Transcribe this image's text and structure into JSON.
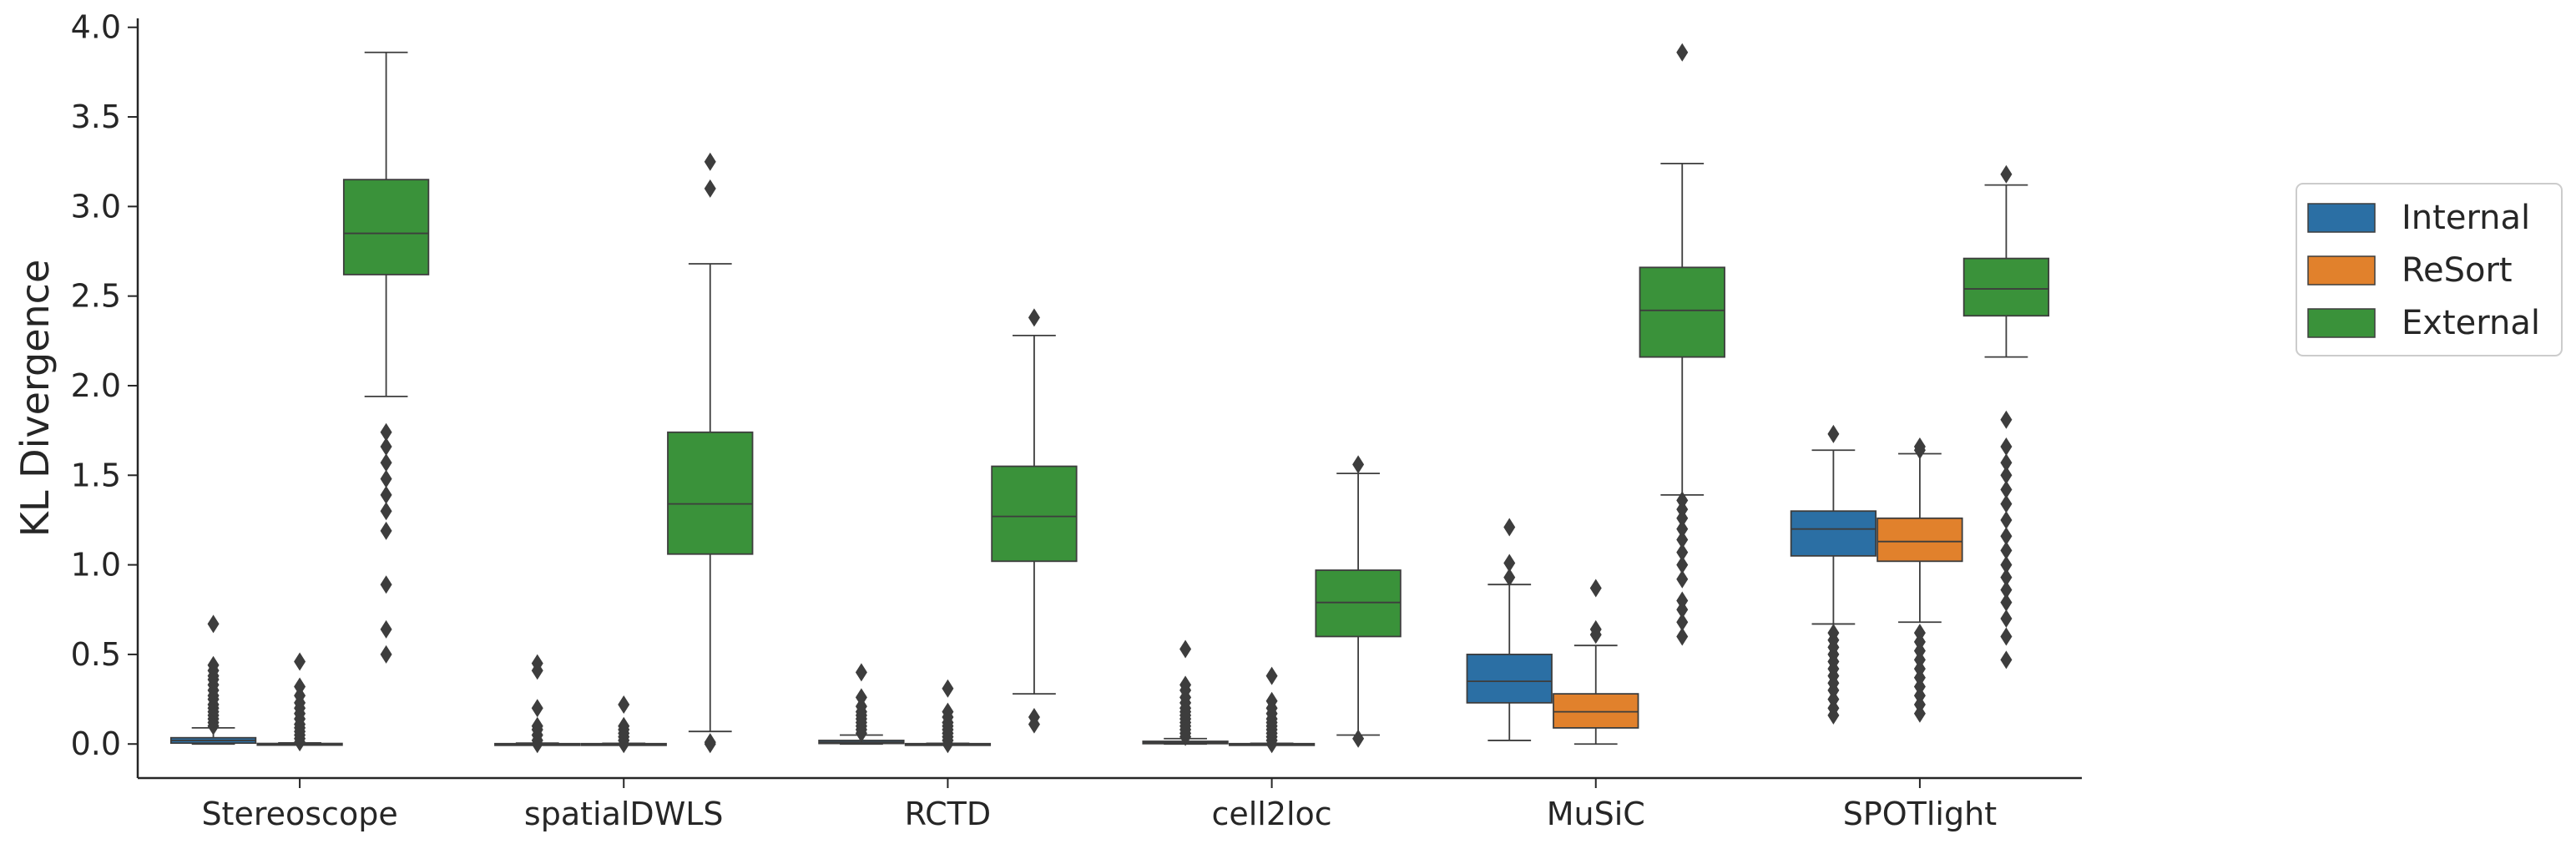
{
  "chart_data": {
    "type": "boxplot",
    "title": "",
    "xlabel": "",
    "ylabel": "KL Divergence",
    "ylim": [
      -0.19,
      4.05
    ],
    "yticks": [
      0.0,
      0.5,
      1.0,
      1.5,
      2.0,
      2.5,
      3.0,
      3.5,
      4.0
    ],
    "ytick_labels": [
      "0.0",
      "0.5",
      "1.0",
      "1.5",
      "2.0",
      "2.5",
      "3.0",
      "3.5",
      "4.0"
    ],
    "categories": [
      "Stereoscope",
      "spatialDWLS",
      "RCTD",
      "cell2loc",
      "MuSiC",
      "SPOTlight"
    ],
    "legend": {
      "placement": "right"
    },
    "series": [
      {
        "name": "Internal",
        "color": "#2b6fa4",
        "boxes": [
          {
            "whislo": 0.0,
            "q1": 0.005,
            "med": 0.02,
            "q3": 0.035,
            "whishi": 0.09,
            "fliers": [
              0.1,
              0.12,
              0.14,
              0.16,
              0.18,
              0.2,
              0.22,
              0.25,
              0.27,
              0.3,
              0.33,
              0.36,
              0.38,
              0.41,
              0.44,
              0.67
            ]
          },
          {
            "whislo": 0.0,
            "q1": 0.0,
            "med": 0.0,
            "q3": 0.002,
            "whishi": 0.005,
            "fliers": [
              0.0,
              0.02,
              0.05,
              0.08,
              0.1,
              0.2,
              0.41,
              0.45
            ]
          },
          {
            "whislo": 0.0,
            "q1": 0.003,
            "med": 0.01,
            "q3": 0.02,
            "whishi": 0.05,
            "fliers": [
              0.06,
              0.08,
              0.1,
              0.12,
              0.14,
              0.16,
              0.18,
              0.21,
              0.26,
              0.4
            ]
          },
          {
            "whislo": 0.0,
            "q1": 0.002,
            "med": 0.008,
            "q3": 0.015,
            "whishi": 0.03,
            "fliers": [
              0.04,
              0.06,
              0.08,
              0.1,
              0.12,
              0.14,
              0.16,
              0.18,
              0.2,
              0.23,
              0.26,
              0.3,
              0.33,
              0.53
            ]
          },
          {
            "whislo": 0.02,
            "q1": 0.23,
            "med": 0.35,
            "q3": 0.5,
            "whishi": 0.89,
            "fliers": [
              0.93,
              1.01,
              1.21
            ]
          },
          {
            "whislo": 0.67,
            "q1": 1.05,
            "med": 1.2,
            "q3": 1.3,
            "whishi": 1.64,
            "fliers": [
              0.16,
              0.2,
              0.25,
              0.3,
              0.34,
              0.38,
              0.42,
              0.46,
              0.5,
              0.54,
              0.58,
              0.62,
              1.73
            ]
          }
        ]
      },
      {
        "name": "ReSort",
        "color": "#e1812c",
        "boxes": [
          {
            "whislo": 0.0,
            "q1": 0.0,
            "med": 0.0,
            "q3": 0.003,
            "whishi": 0.006,
            "fliers": [
              0.01,
              0.03,
              0.05,
              0.07,
              0.09,
              0.11,
              0.14,
              0.17,
              0.2,
              0.23,
              0.27,
              0.32,
              0.46
            ]
          },
          {
            "whislo": 0.0,
            "q1": 0.0,
            "med": 0.0,
            "q3": 0.002,
            "whishi": 0.004,
            "fliers": [
              0.0,
              0.02,
              0.04,
              0.06,
              0.08,
              0.1,
              0.22
            ]
          },
          {
            "whislo": 0.0,
            "q1": 0.0,
            "med": 0.0,
            "q3": 0.002,
            "whishi": 0.004,
            "fliers": [
              0.0,
              0.02,
              0.04,
              0.06,
              0.08,
              0.1,
              0.12,
              0.15,
              0.18,
              0.31
            ]
          },
          {
            "whislo": 0.0,
            "q1": 0.0,
            "med": 0.0,
            "q3": 0.002,
            "whishi": 0.004,
            "fliers": [
              0.0,
              0.02,
              0.04,
              0.06,
              0.08,
              0.1,
              0.12,
              0.14,
              0.17,
              0.2,
              0.24,
              0.38
            ]
          },
          {
            "whislo": 0.0,
            "q1": 0.09,
            "med": 0.18,
            "q3": 0.28,
            "whishi": 0.55,
            "fliers": [
              0.61,
              0.64,
              0.87
            ]
          },
          {
            "whislo": 0.68,
            "q1": 1.02,
            "med": 1.13,
            "q3": 1.26,
            "whishi": 1.62,
            "fliers": [
              0.17,
              0.22,
              0.27,
              0.32,
              0.37,
              0.42,
              0.47,
              0.52,
              0.57,
              0.62,
              1.64,
              1.66
            ]
          }
        ]
      },
      {
        "name": "External",
        "color": "#3a923a",
        "boxes": [
          {
            "whislo": 1.94,
            "q1": 2.62,
            "med": 2.85,
            "q3": 3.15,
            "whishi": 3.86,
            "fliers": [
              0.5,
              0.64,
              0.89,
              1.19,
              1.3,
              1.39,
              1.48,
              1.57,
              1.66,
              1.74
            ]
          },
          {
            "whislo": 0.07,
            "q1": 1.06,
            "med": 1.34,
            "q3": 1.74,
            "whishi": 2.68,
            "fliers": [
              0.0,
              0.01,
              3.1,
              3.25
            ]
          },
          {
            "whislo": 0.28,
            "q1": 1.02,
            "med": 1.27,
            "q3": 1.55,
            "whishi": 2.28,
            "fliers": [
              0.11,
              0.15,
              2.38
            ]
          },
          {
            "whislo": 0.05,
            "q1": 0.6,
            "med": 0.79,
            "q3": 0.97,
            "whishi": 1.51,
            "fliers": [
              0.03,
              1.56
            ]
          },
          {
            "whislo": 1.39,
            "q1": 2.16,
            "med": 2.42,
            "q3": 2.66,
            "whishi": 3.24,
            "fliers": [
              0.6,
              0.68,
              0.75,
              0.8,
              0.92,
              1.0,
              1.07,
              1.14,
              1.2,
              1.26,
              1.31,
              1.36,
              3.86
            ]
          },
          {
            "whislo": 2.16,
            "q1": 2.39,
            "med": 2.54,
            "q3": 2.71,
            "whishi": 3.12,
            "fliers": [
              0.47,
              0.6,
              0.7,
              0.79,
              0.86,
              0.93,
              1.0,
              1.08,
              1.16,
              1.25,
              1.34,
              1.42,
              1.5,
              1.57,
              1.66,
              1.81,
              3.18
            ]
          }
        ]
      }
    ]
  }
}
